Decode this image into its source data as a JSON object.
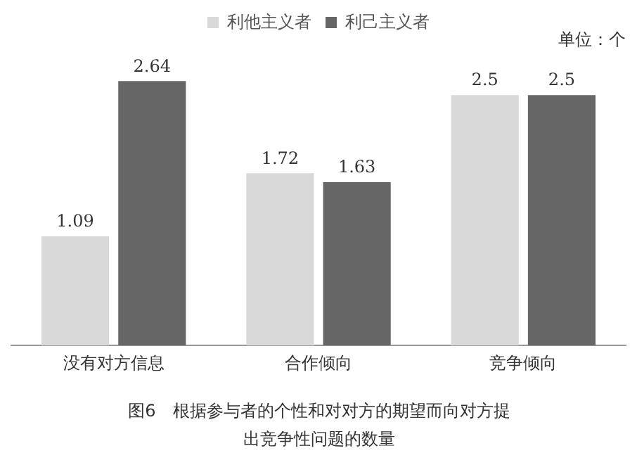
{
  "chart_data": {
    "type": "bar",
    "categories": [
      "没有对方信息",
      "合作倾向",
      "竞争倾向"
    ],
    "series": [
      {
        "name": "利他主义者",
        "color": "#d9d9d9",
        "values": [
          1.09,
          1.72,
          2.5
        ]
      },
      {
        "name": "利己主义者",
        "color": "#666666",
        "values": [
          2.64,
          1.63,
          2.5
        ]
      }
    ],
    "data_labels": true,
    "legend": "top",
    "grid": false,
    "annotations": [
      "单位：个",
      "图6　根据参与者的个性和对对方的期望而向对方提出竞争性问题的数量"
    ]
  }
}
